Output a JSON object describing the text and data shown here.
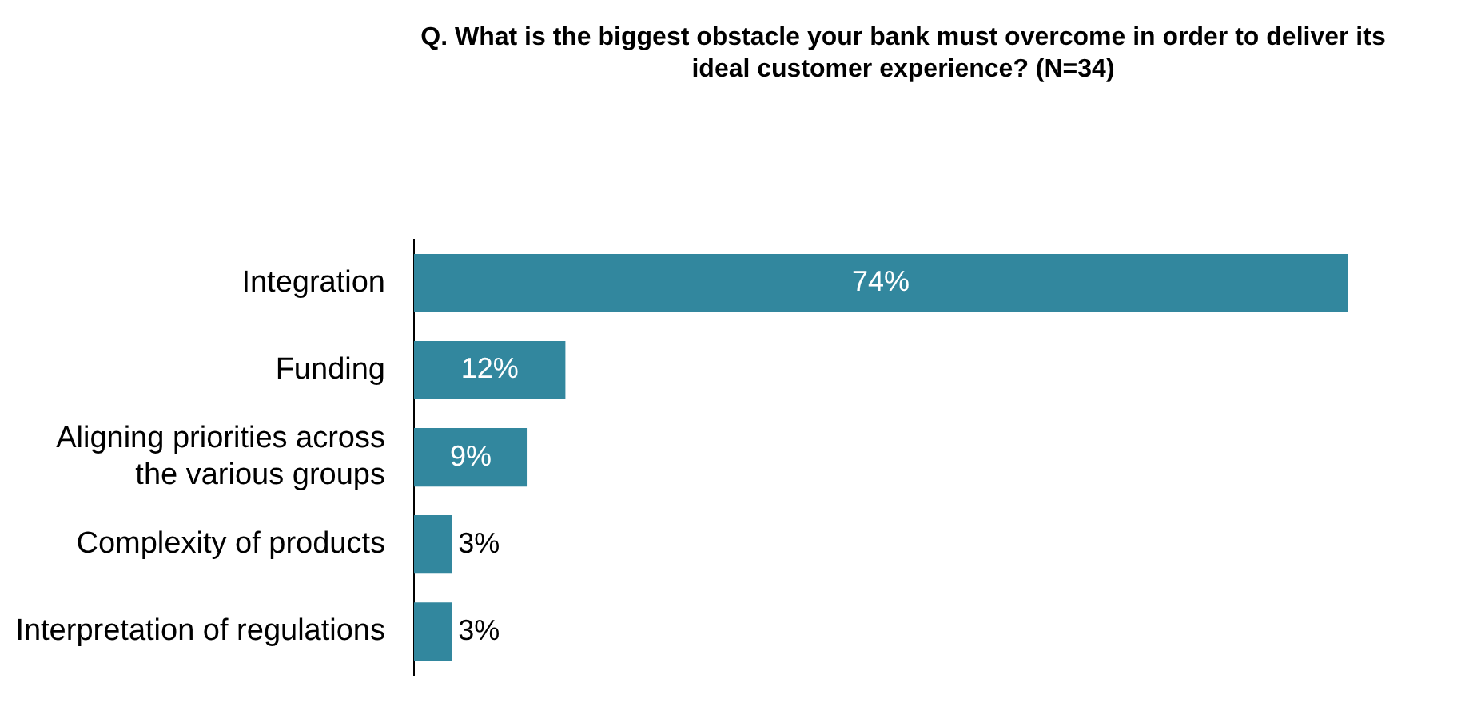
{
  "chart_data": {
    "type": "bar",
    "orientation": "horizontal",
    "title": "Q. What is the biggest obstacle your bank must overcome in order to deliver its ideal customer experience? (N=34)",
    "categories": [
      "Integration",
      "Funding",
      "Aligning priorities across the various groups",
      "Complexity of products",
      "Interpretation of regulations"
    ],
    "values": [
      74,
      12,
      9,
      3,
      3
    ],
    "value_labels": [
      "74%",
      "12%",
      "9%",
      "3%",
      "3%"
    ],
    "color": "#32879e",
    "legend": false
  }
}
